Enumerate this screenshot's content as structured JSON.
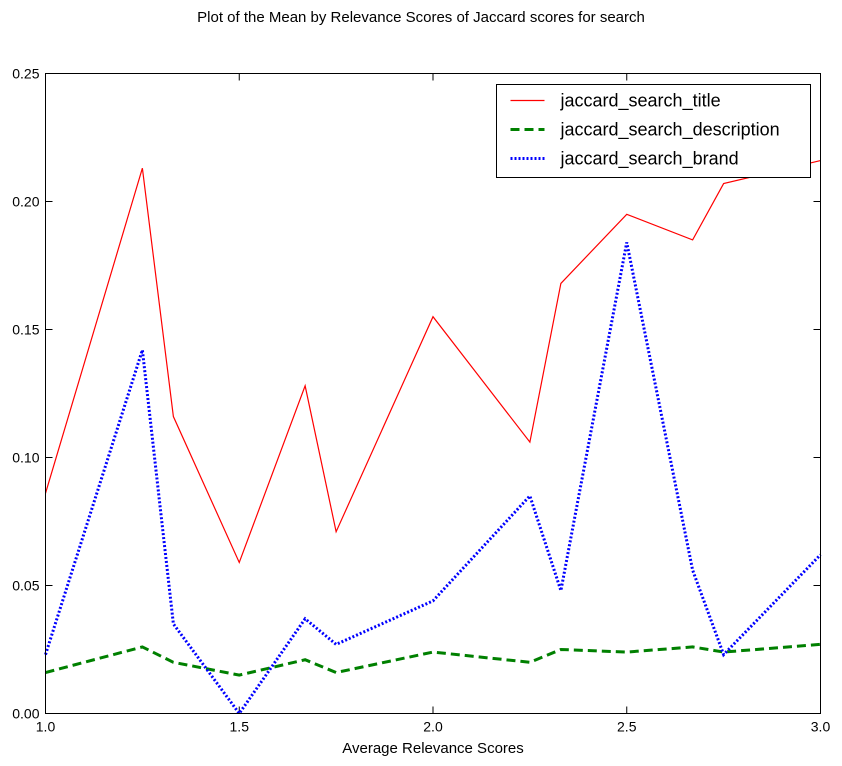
{
  "chart_data": {
    "type": "line",
    "title": "Plot of the Mean by Relevance Scores of Jaccard scores for search",
    "xlabel": "Average Relevance Scores",
    "ylabel": "",
    "xlim": [
      1.0,
      3.0
    ],
    "ylim": [
      0.0,
      0.25
    ],
    "x_ticks": [
      "1.0",
      "1.5",
      "2.0",
      "2.5",
      "3.0"
    ],
    "y_ticks": [
      "0.00",
      "0.05",
      "0.10",
      "0.15",
      "0.20",
      "0.25"
    ],
    "x": [
      1.0,
      1.25,
      1.33,
      1.5,
      1.67,
      1.75,
      2.0,
      2.25,
      2.33,
      2.5,
      2.67,
      2.75,
      3.0
    ],
    "grid": false,
    "legend_position": "top-right",
    "series": [
      {
        "name": "jaccard_search_title",
        "color": "#ff0000",
        "style": "solid",
        "values": [
          0.086,
          0.213,
          0.116,
          0.059,
          0.128,
          0.071,
          0.155,
          0.106,
          0.168,
          0.195,
          0.185,
          0.207,
          0.216
        ]
      },
      {
        "name": "jaccard_search_description",
        "color": "#008000",
        "style": "dashed",
        "values": [
          0.016,
          0.026,
          0.02,
          0.015,
          0.021,
          0.016,
          0.024,
          0.02,
          0.025,
          0.024,
          0.026,
          0.024,
          0.027
        ]
      },
      {
        "name": "jaccard_search_brand",
        "color": "#0000ff",
        "style": "dotted",
        "values": [
          0.023,
          0.142,
          0.035,
          0.0,
          0.037,
          0.027,
          0.044,
          0.085,
          0.048,
          0.184,
          0.056,
          0.023,
          0.062
        ]
      }
    ]
  }
}
